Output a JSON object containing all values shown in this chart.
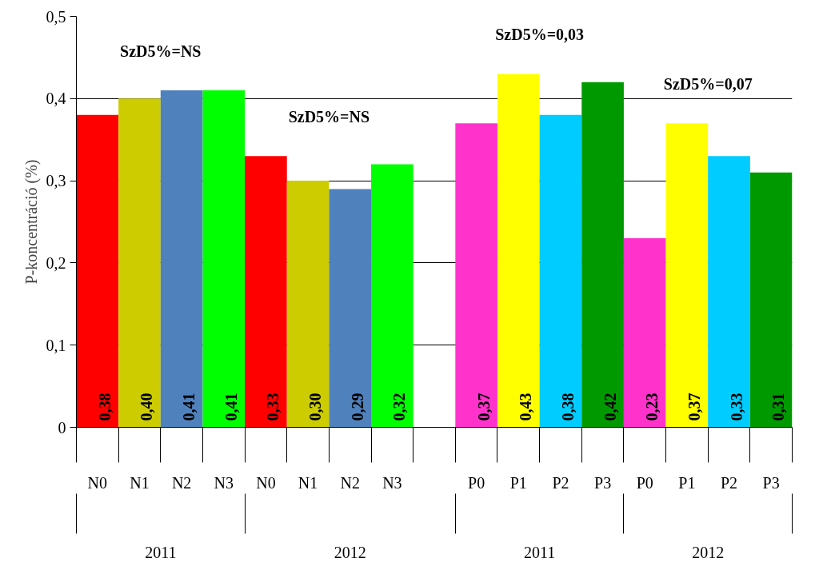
{
  "chart_data": {
    "type": "bar",
    "ylabel": "P-koncentráció (%)",
    "categories": [
      "N0",
      "N1",
      "N2",
      "N3",
      "N0",
      "N1",
      "N2",
      "N3",
      null,
      "P0",
      "P1",
      "P2",
      "P3",
      "P0",
      "P1",
      "P2",
      "P3"
    ],
    "values": [
      0.38,
      0.4,
      0.41,
      0.41,
      0.33,
      0.3,
      0.29,
      0.32,
      null,
      0.37,
      0.43,
      0.38,
      0.42,
      0.23,
      0.37,
      0.33,
      0.31
    ],
    "value_labels": [
      "0,38",
      "0,40",
      "0,41",
      "0,41",
      "0,33",
      "0,30",
      "0,29",
      "0,32",
      null,
      "0,37",
      "0,43",
      "0,38",
      "0,42",
      "0,23",
      "0,37",
      "0,33",
      "0,31"
    ],
    "colors": [
      "#ff0000",
      "#cccc00",
      "#4f81bd",
      "#00ff00",
      "#ff0000",
      "#cccc00",
      "#4f81bd",
      "#00ff00",
      null,
      "#ff33cc",
      "#ffff00",
      "#00ccff",
      "#009900",
      "#ff33cc",
      "#ffff00",
      "#00ccff",
      "#009900"
    ],
    "annotations": [
      "2011",
      "2012",
      "2011",
      "2012",
      "SzD5%=NS",
      "SzD5%=NS",
      "SzD5%=0,03",
      "SzD5%=0,07"
    ],
    "ylim": [
      0,
      0.5
    ],
    "yticks": [
      {
        "value": 0,
        "label": "0"
      },
      {
        "value": 0.1,
        "label": "0,1"
      },
      {
        "value": 0.2,
        "label": "0,2"
      },
      {
        "value": 0.3,
        "label": "0,3"
      },
      {
        "value": 0.4,
        "label": "0,4"
      },
      {
        "value": 0.5,
        "label": "0,5"
      }
    ],
    "grid": "y"
  }
}
